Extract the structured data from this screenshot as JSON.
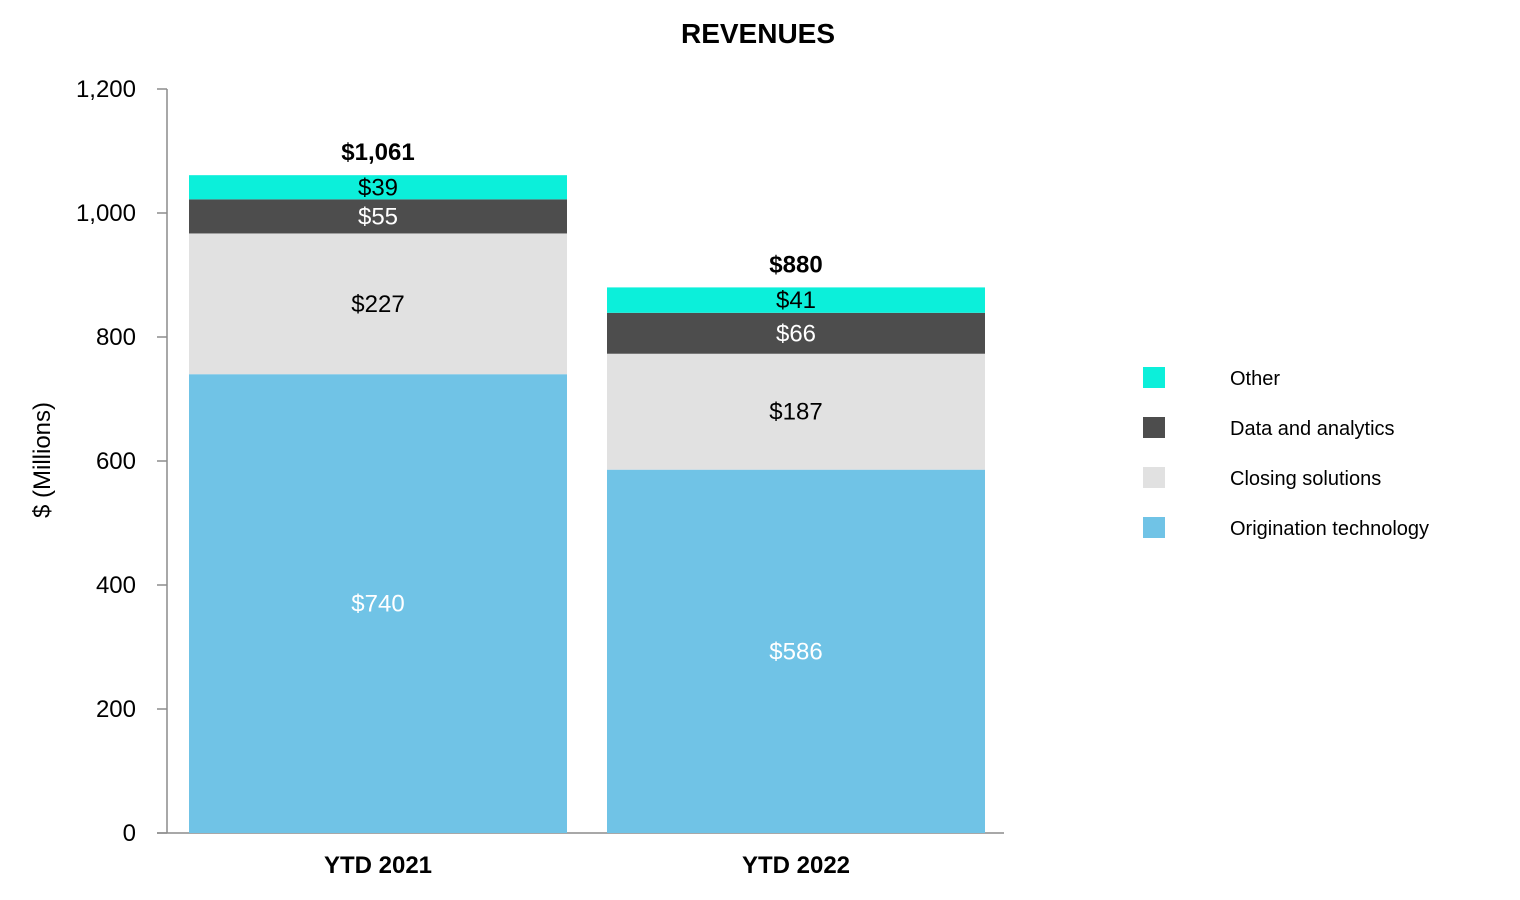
{
  "chart_data": {
    "type": "bar",
    "stacked": true,
    "title": "REVENUES",
    "xlabel": "",
    "ylabel": "$ (Millions)",
    "ylim": [
      0,
      1200
    ],
    "yticks": [
      0,
      200,
      400,
      600,
      800,
      1000,
      1200
    ],
    "ytick_labels": [
      "0",
      "200",
      "400",
      "600",
      "800",
      "1,000",
      "1,200"
    ],
    "categories": [
      "YTD 2021",
      "YTD 2022"
    ],
    "series": [
      {
        "name": "Origination technology",
        "values": [
          740,
          586
        ],
        "labels": [
          "$740",
          "$586"
        ],
        "color": "#70C3E6",
        "label_color": "#ffffff"
      },
      {
        "name": "Closing solutions",
        "values": [
          227,
          187
        ],
        "labels": [
          "$227",
          "$187"
        ],
        "color": "#E1E1E1",
        "label_color": "#000000"
      },
      {
        "name": "Data and analytics",
        "values": [
          55,
          66
        ],
        "labels": [
          "$55",
          "$66"
        ],
        "color": "#4D4D4D",
        "label_color": "#ffffff"
      },
      {
        "name": "Other",
        "values": [
          39,
          41
        ],
        "labels": [
          "$39",
          "$41"
        ],
        "color": "#0CEFDA",
        "label_color": "#000000"
      }
    ],
    "totals": [
      1061,
      880
    ],
    "total_labels": [
      "$1,061",
      "$880"
    ],
    "legend_position": "right",
    "legend_order": [
      "Other",
      "Data and analytics",
      "Closing solutions",
      "Origination technology"
    ],
    "grid": false
  }
}
